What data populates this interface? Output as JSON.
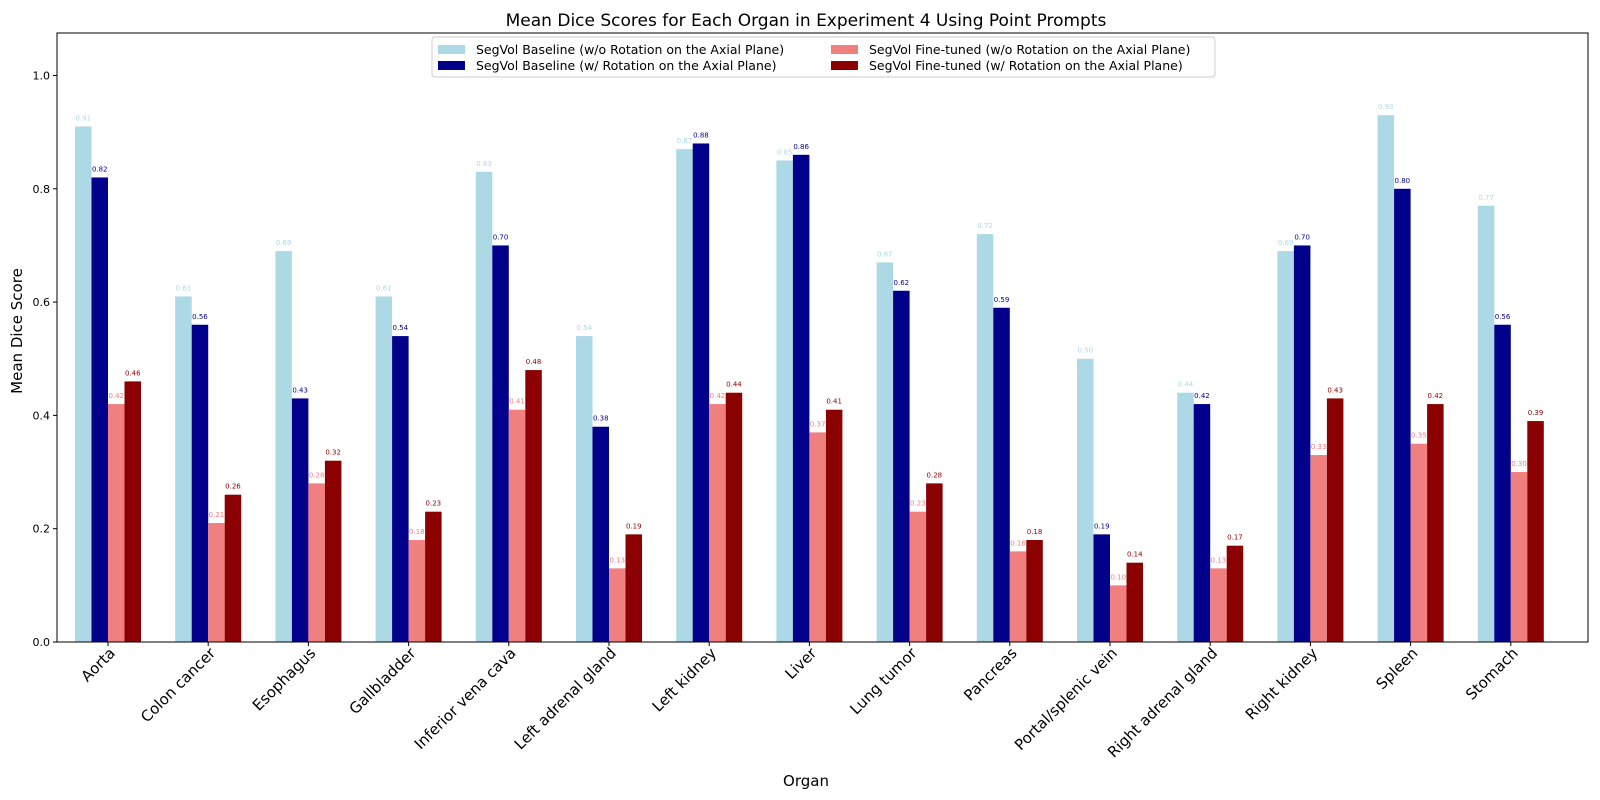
{
  "chart_data": {
    "type": "bar",
    "title": "Mean Dice Scores for Each Organ in Experiment 4 Using Point Prompts",
    "xlabel": "Organ",
    "ylabel": "Mean Dice Score",
    "ylim": [
      0,
      1.075
    ],
    "yticks": [
      "0.0",
      "0.2",
      "0.4",
      "0.6",
      "0.8",
      "1.0"
    ],
    "grid": false,
    "legend_position": "top-center",
    "categories": [
      "Aorta",
      "Colon cancer",
      "Esophagus",
      "Gallbladder",
      "Inferior vena cava",
      "Left adrenal gland",
      "Left kidney",
      "Liver",
      "Lung tumor",
      "Pancreas",
      "Portal/splenic vein",
      "Right adrenal gland",
      "Right kidney",
      "Spleen",
      "Stomach"
    ],
    "series": [
      {
        "name": "SegVol Baseline (w/o Rotation on the Axial Plane)",
        "color": "#add8e6",
        "values": [
          0.91,
          0.61,
          0.69,
          0.61,
          0.83,
          0.54,
          0.87,
          0.85,
          0.67,
          0.72,
          0.5,
          0.44,
          0.69,
          0.93,
          0.77
        ],
        "labels": [
          "0.91",
          "0.61",
          "0.69",
          "0.61",
          "0.83",
          "0.54",
          "0.87",
          "0.85",
          "0.67",
          "0.72",
          "0.50",
          "0.44",
          "0.69",
          "0.93",
          "0.77"
        ]
      },
      {
        "name": "SegVol Baseline (w/ Rotation on the Axial Plane)",
        "color": "#00008b",
        "values": [
          0.82,
          0.56,
          0.43,
          0.54,
          0.7,
          0.38,
          0.88,
          0.86,
          0.62,
          0.59,
          0.19,
          0.42,
          0.7,
          0.8,
          0.56
        ],
        "labels": [
          "0.82",
          "0.56",
          "0.43",
          "0.54",
          "0.70",
          "0.38",
          "0.88",
          "0.86",
          "0.62",
          "0.59",
          "0.19",
          "0.42",
          "0.70",
          "0.80",
          "0.56"
        ]
      },
      {
        "name": "SegVol Fine-tuned (w/o Rotation on the Axial Plane)",
        "color": "#f08080",
        "values": [
          0.42,
          0.21,
          0.28,
          0.18,
          0.41,
          0.13,
          0.42,
          0.37,
          0.23,
          0.16,
          0.1,
          0.13,
          0.33,
          0.35,
          0.3
        ],
        "labels": [
          "0.42",
          "0.21",
          "0.28",
          "0.18",
          "0.41",
          "0.13",
          "0.42",
          "0.37",
          "0.23",
          "0.16",
          "0.10",
          "0.13",
          "0.33",
          "0.35",
          "0.30"
        ]
      },
      {
        "name": "SegVol Fine-tuned (w/ Rotation on the Axial Plane)",
        "color": "#8b0000",
        "values": [
          0.46,
          0.26,
          0.32,
          0.23,
          0.48,
          0.19,
          0.44,
          0.41,
          0.28,
          0.18,
          0.14,
          0.17,
          0.43,
          0.42,
          0.39
        ],
        "labels": [
          "0.46",
          "0.26",
          "0.32",
          "0.23",
          "0.48",
          "0.19",
          "0.44",
          "0.41",
          "0.28",
          "0.18",
          "0.14",
          "0.17",
          "0.43",
          "0.42",
          "0.39"
        ]
      }
    ]
  }
}
